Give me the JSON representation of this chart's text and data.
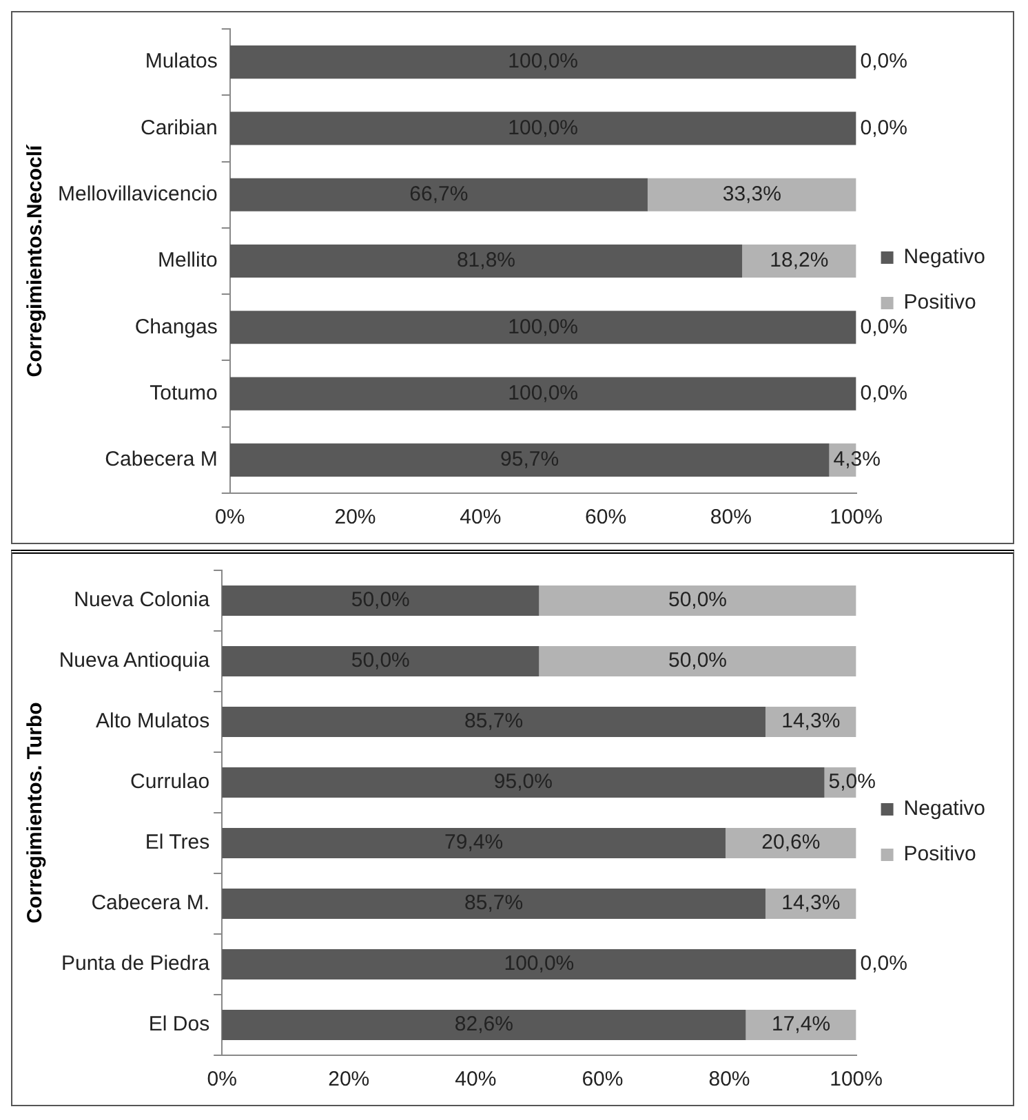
{
  "chart_data": [
    {
      "type": "bar",
      "orientation": "horizontal",
      "stacked": true,
      "ylabel": "Corregimientos.Necoclí",
      "legend": "right",
      "categories": [
        "Mulatos",
        "Caribian",
        "Mellovillavicencio",
        "Mellito",
        "Changas",
        "Totumo",
        "Cabecera M"
      ],
      "series": [
        {
          "name": "Negativo",
          "color": "#595959",
          "values": [
            100.0,
            100.0,
            66.7,
            81.8,
            100.0,
            100.0,
            95.7
          ],
          "value_labels": [
            "100,0%",
            "100,0%",
            "66,7%",
            "81,8%",
            "100,0%",
            "100,0%",
            "95,7%"
          ]
        },
        {
          "name": "Positivo",
          "color": "#b3b3b3",
          "values": [
            0.0,
            0.0,
            33.3,
            18.2,
            0.0,
            0.0,
            4.3
          ],
          "value_labels": [
            "0,0%",
            "0,0%",
            "33,3%",
            "18,2%",
            "0,0%",
            "0,0%",
            "4,3%"
          ]
        }
      ],
      "xlim": [
        0,
        100
      ],
      "xticks": [
        {
          "value": 0,
          "label": "0%"
        },
        {
          "value": 20,
          "label": "20%"
        },
        {
          "value": 40,
          "label": "40%"
        },
        {
          "value": 60,
          "label": "60%"
        },
        {
          "value": 80,
          "label": "80%"
        },
        {
          "value": 100,
          "label": "100%"
        }
      ],
      "grid": false
    },
    {
      "type": "bar",
      "orientation": "horizontal",
      "stacked": true,
      "ylabel": "Corregimientos. Turbo",
      "legend": "right",
      "categories": [
        "Nueva Colonia",
        "Nueva Antioquia",
        "Alto Mulatos",
        "Currulao",
        "El Tres",
        "Cabecera M.",
        "Punta de Piedra",
        "El Dos"
      ],
      "series": [
        {
          "name": "Negativo",
          "color": "#595959",
          "values": [
            50.0,
            50.0,
            85.7,
            95.0,
            79.4,
            85.7,
            100.0,
            82.6
          ],
          "value_labels": [
            "50,0%",
            "50,0%",
            "85,7%",
            "95,0%",
            "79,4%",
            "85,7%",
            "100,0%",
            "82,6%"
          ]
        },
        {
          "name": "Positivo",
          "color": "#b3b3b3",
          "values": [
            50.0,
            50.0,
            14.3,
            5.0,
            20.6,
            14.3,
            0.0,
            17.4
          ],
          "value_labels": [
            "50,0%",
            "50,0%",
            "14,3%",
            "5,0%",
            "20,6%",
            "14,3%",
            "0,0%",
            "17,4%"
          ]
        }
      ],
      "xlim": [
        0,
        100
      ],
      "xticks": [
        {
          "value": 0,
          "label": "0%"
        },
        {
          "value": 20,
          "label": "20%"
        },
        {
          "value": 40,
          "label": "40%"
        },
        {
          "value": 60,
          "label": "60%"
        },
        {
          "value": 80,
          "label": "80%"
        },
        {
          "value": 100,
          "label": "100%"
        }
      ],
      "grid": false
    }
  ]
}
